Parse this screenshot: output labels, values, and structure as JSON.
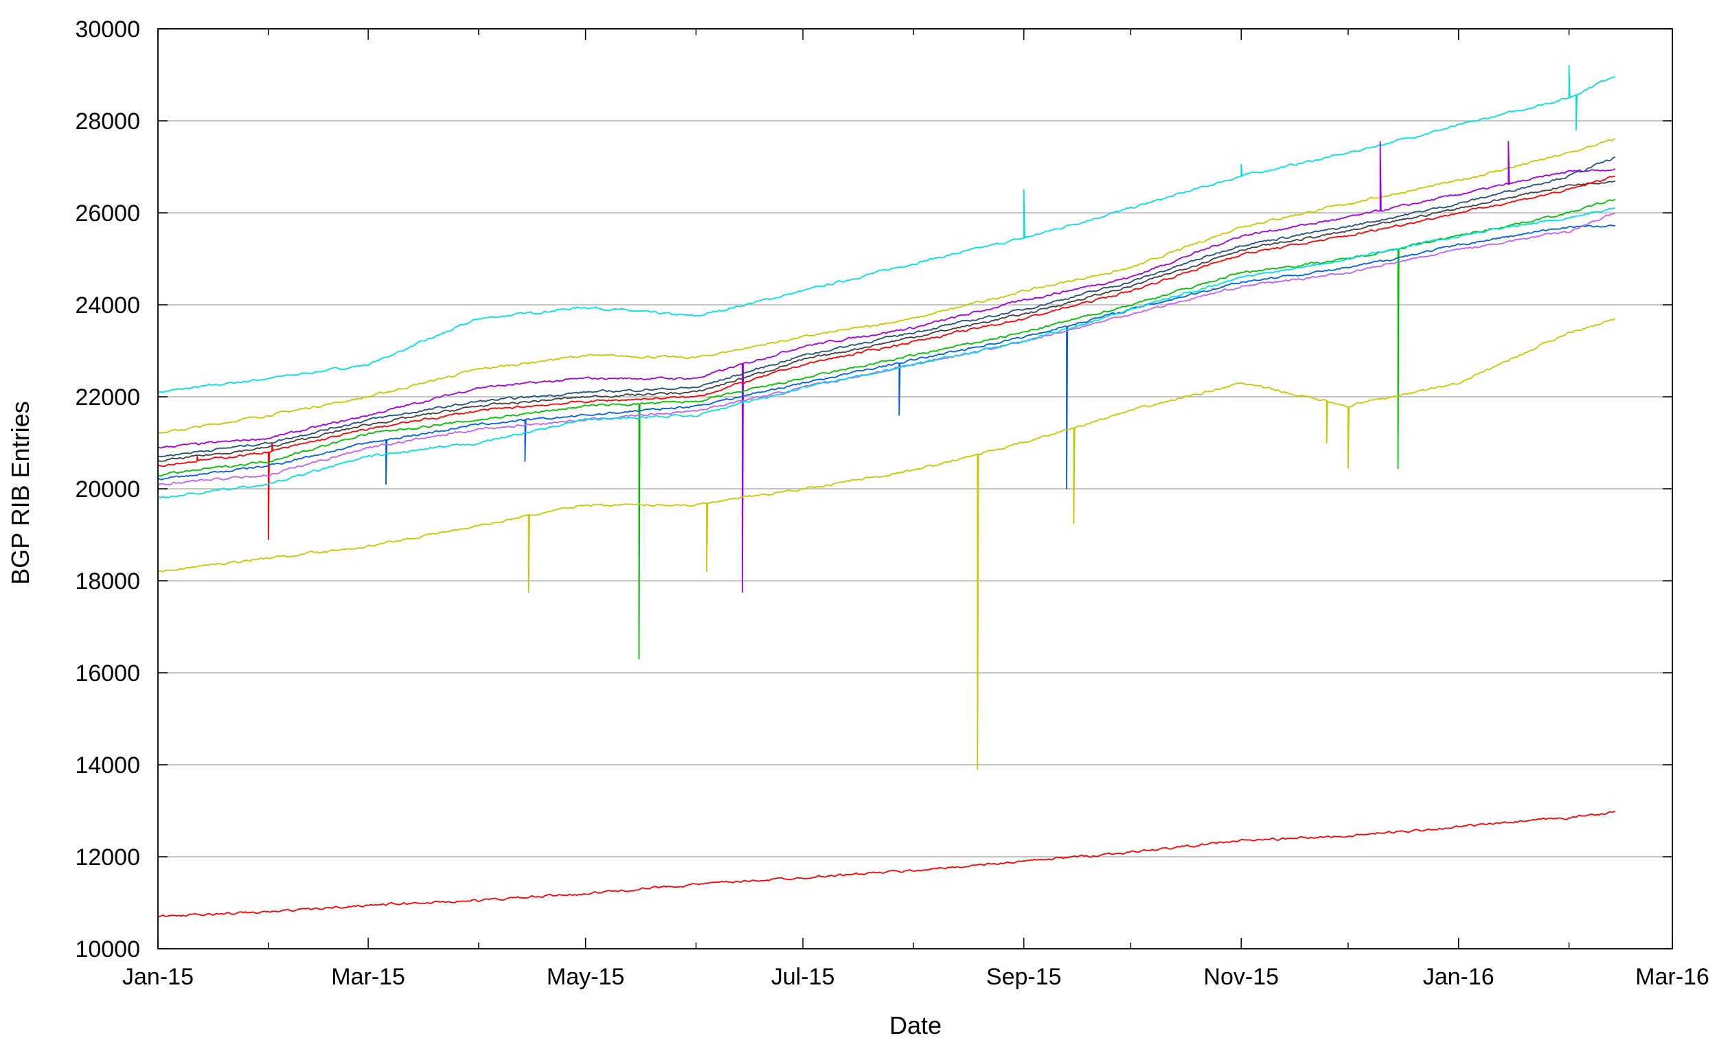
{
  "chart_data": {
    "type": "line",
    "title": "",
    "xlabel": "Date",
    "ylabel": "BGP RIB Entries",
    "xlim": [
      "2015-01-01",
      "2016-03-01"
    ],
    "ylim": [
      10000,
      30000
    ],
    "x_ticks": [
      "Jan-15",
      "Mar-15",
      "May-15",
      "Jul-15",
      "Sep-15",
      "Nov-15",
      "Jan-16",
      "Mar-16"
    ],
    "y_ticks": [
      10000,
      12000,
      14000,
      16000,
      18000,
      20000,
      22000,
      24000,
      26000,
      28000,
      30000
    ],
    "grid": {
      "horizontal": true,
      "vertical": false
    },
    "legend": "none",
    "x_dates": [
      "2015-01-01",
      "2015-02-01",
      "2015-03-01",
      "2015-04-01",
      "2015-05-01",
      "2015-06-01",
      "2015-07-01",
      "2015-08-01",
      "2015-09-01",
      "2015-10-01",
      "2015-11-01",
      "2015-12-01",
      "2016-01-01",
      "2016-02-01",
      "2016-02-14"
    ],
    "series": [
      {
        "color": "#00e0e0",
        "values": [
          22100,
          22400,
          22700,
          23700,
          23950,
          23750,
          24300,
          24900,
          25450,
          26100,
          26800,
          27300,
          27900,
          28500,
          29000
        ],
        "spikes": [
          [
            "2015-09-01",
            26500
          ],
          [
            "2015-11-01",
            27050
          ],
          [
            "2016-02-01",
            29200
          ],
          [
            "2016-02-03",
            27800
          ]
        ]
      },
      {
        "color": "#c8c800",
        "values": [
          21200,
          21600,
          22000,
          22600,
          22900,
          22850,
          23300,
          23700,
          24300,
          24800,
          25700,
          26200,
          26700,
          27300,
          27600
        ]
      },
      {
        "color": "#a000e0",
        "values": [
          20900,
          21100,
          21600,
          22200,
          22400,
          22400,
          23100,
          23500,
          24100,
          24600,
          25500,
          25900,
          26400,
          26900,
          26950
        ],
        "spikes": [
          [
            "2015-06-14",
            17750
          ],
          [
            "2015-12-10",
            27550
          ],
          [
            "2016-01-15",
            27550
          ]
        ]
      },
      {
        "color": "#205080",
        "values": [
          20700,
          21000,
          21500,
          21900,
          22100,
          22200,
          22900,
          23400,
          23900,
          24500,
          25300,
          25700,
          26200,
          26800,
          27200
        ]
      },
      {
        "color": "#404040",
        "values": [
          20600,
          20900,
          21400,
          21800,
          22000,
          22100,
          22800,
          23300,
          23800,
          24400,
          25200,
          25600,
          26100,
          26600,
          26700
        ]
      },
      {
        "color": "#ff0000",
        "values": [
          20500,
          20800,
          21300,
          21700,
          21900,
          22000,
          22700,
          23200,
          23700,
          24300,
          25100,
          25500,
          26000,
          26500,
          26800
        ],
        "spikes": [
          [
            "2015-01-12",
            20700
          ],
          [
            "2015-02-01",
            18900
          ],
          [
            "2015-02-02",
            21000
          ]
        ]
      },
      {
        "color": "#00c000",
        "values": [
          20300,
          20600,
          21200,
          21500,
          21800,
          21900,
          22400,
          22900,
          23400,
          24000,
          24700,
          25000,
          25500,
          26000,
          26300
        ],
        "spikes": [
          [
            "2015-05-16",
            16300
          ],
          [
            "2015-12-15",
            20450
          ]
        ]
      },
      {
        "color": "#0060e0",
        "values": [
          20200,
          20500,
          21000,
          21400,
          21600,
          21800,
          22300,
          22800,
          23300,
          23900,
          24500,
          24800,
          25300,
          25700,
          25700
        ],
        "spikes": [
          [
            "2015-03-06",
            20100
          ],
          [
            "2015-04-14",
            20600
          ],
          [
            "2015-07-28",
            21600
          ],
          [
            "2015-09-13",
            20000
          ]
        ]
      },
      {
        "color": "#c060ff",
        "values": [
          20100,
          20300,
          20900,
          21300,
          21500,
          21700,
          22200,
          22700,
          23200,
          23800,
          24400,
          24700,
          25200,
          25600,
          26000
        ]
      },
      {
        "color": "#00e0e0",
        "values": [
          19800,
          20100,
          20700,
          21000,
          21500,
          21600,
          22200,
          22700,
          23200,
          23900,
          24600,
          25000,
          25500,
          25900,
          26100
        ]
      },
      {
        "color": "#c8c800",
        "values": [
          18200,
          18500,
          18750,
          19200,
          19650,
          19650,
          20000,
          20400,
          21000,
          21700,
          22300,
          21800,
          22300,
          23400,
          23700
        ],
        "spikes": [
          [
            "2015-04-15",
            17750
          ],
          [
            "2015-06-04",
            18200
          ],
          [
            "2015-08-19",
            13900
          ],
          [
            "2015-09-15",
            19250
          ],
          [
            "2015-11-25",
            21000
          ],
          [
            "2015-12-01",
            20450
          ]
        ]
      },
      {
        "color": "#ff0000",
        "values": [
          10700,
          10800,
          10950,
          11050,
          11200,
          11400,
          11550,
          11700,
          11900,
          12100,
          12350,
          12450,
          12650,
          12850,
          12980
        ]
      }
    ]
  }
}
